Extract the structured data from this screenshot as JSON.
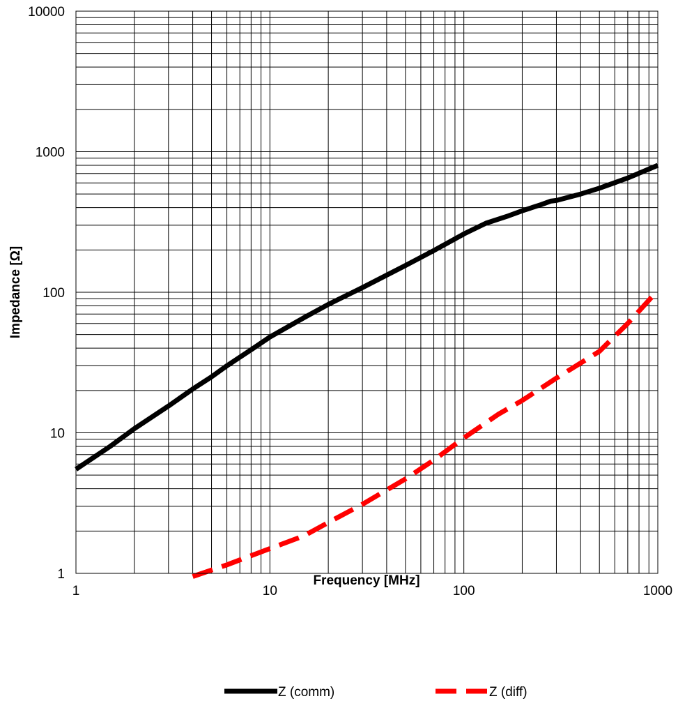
{
  "chart_data": {
    "type": "line",
    "title": "",
    "xlabel": "Frequency [MHz]",
    "ylabel": "Impedance [Ω]",
    "x_scale": "log",
    "y_scale": "log",
    "xlim": [
      1,
      1000
    ],
    "ylim": [
      1,
      10000
    ],
    "x_ticks": [
      "1",
      "10",
      "100",
      "1000"
    ],
    "y_ticks": [
      "1",
      "10",
      "100",
      "1000",
      "10000"
    ],
    "grid": true,
    "legend_position": "bottom",
    "series": [
      {
        "name": "Z (comm)",
        "color": "#000000",
        "style": "solid",
        "x": [
          1,
          1.5,
          2,
          3,
          4,
          5,
          6,
          8,
          10,
          15,
          20,
          30,
          50,
          70,
          100,
          130,
          170,
          200,
          250,
          280,
          300,
          400,
          500,
          700,
          1000
        ],
        "y": [
          5.5,
          8,
          10.7,
          15.5,
          20.5,
          25,
          30,
          39,
          48,
          66,
          82,
          108,
          155,
          198,
          260,
          310,
          350,
          380,
          420,
          445,
          450,
          500,
          550,
          650,
          800
        ]
      },
      {
        "name": "Z (diff)",
        "color": "#ff0000",
        "style": "dashed",
        "x": [
          4,
          6,
          10,
          15,
          20,
          30,
          50,
          70,
          100,
          150,
          200,
          300,
          500,
          700,
          1000
        ],
        "y": [
          0.95,
          1.15,
          1.5,
          1.85,
          2.3,
          3.1,
          4.7,
          6.4,
          9.2,
          13.5,
          17,
          24.5,
          38,
          60,
          103
        ]
      }
    ]
  }
}
